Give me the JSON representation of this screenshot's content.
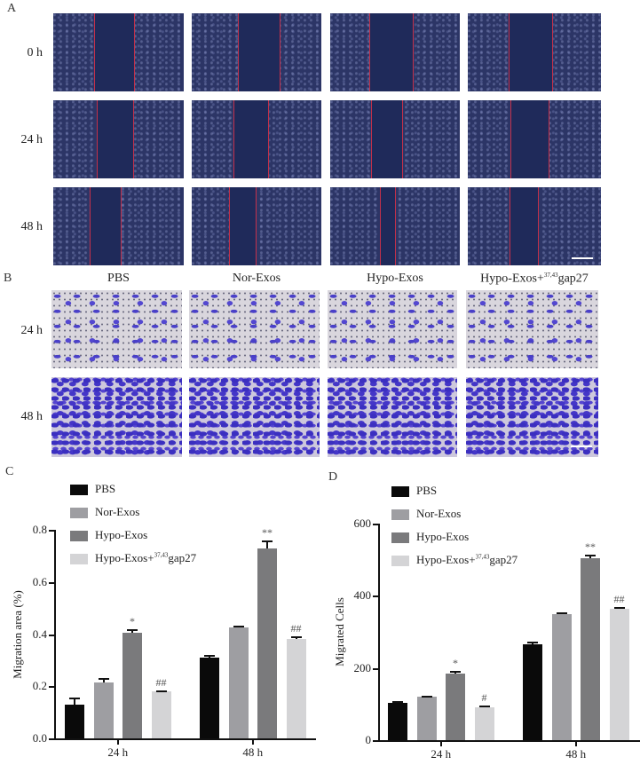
{
  "panels": {
    "A": {
      "letter": "A",
      "row_labels": [
        "0 h",
        "24 h",
        "48 h"
      ],
      "description": "Scratch wound healing micrographs, 4 groups x 3 time points"
    },
    "B": {
      "letter": "B",
      "column_headers": [
        "PBS",
        "Nor-Exos",
        "Hypo-Exos",
        "Hypo-Exos+",
        "37,43",
        "gap27"
      ],
      "row_labels": [
        "24 h",
        "48 h"
      ]
    },
    "C": {
      "letter": "C"
    },
    "D": {
      "letter": "D"
    }
  },
  "legend": {
    "items": [
      {
        "label": "PBS",
        "color": "#0a0a0a"
      },
      {
        "label": "Nor-Exos",
        "color": "#9e9ea2"
      },
      {
        "label": "Hypo-Exos",
        "color": "#7a7a7c"
      },
      {
        "label": "Hypo-Exos+",
        "sup": "37,43",
        "suffix": "gap27",
        "color": "#d4d4d6"
      }
    ]
  },
  "chart_data": [
    {
      "type": "bar",
      "panel": "C",
      "title": "",
      "xlabel": "",
      "ylabel": "Migration area (%)",
      "ylim": [
        0,
        0.8
      ],
      "yticks": [
        "0.0",
        "0.2",
        "0.4",
        "0.6",
        "0.8"
      ],
      "categories": [
        "24 h",
        "48 h"
      ],
      "series": [
        {
          "name": "PBS",
          "values": [
            0.13,
            0.31
          ],
          "errors": [
            0.025,
            0.01
          ]
        },
        {
          "name": "Nor-Exos",
          "values": [
            0.215,
            0.425
          ],
          "errors": [
            0.015,
            0.008
          ]
        },
        {
          "name": "Hypo-Exos",
          "values": [
            0.405,
            0.73
          ],
          "errors": [
            0.015,
            0.03
          ]
        },
        {
          "name": "Hypo-Exos+37,43gap27",
          "values": [
            0.18,
            0.38
          ],
          "errors": [
            0.005,
            0.01
          ]
        }
      ],
      "annotations": [
        {
          "category": "24 h",
          "series": "Hypo-Exos",
          "text": "*"
        },
        {
          "category": "24 h",
          "series": "Hypo-Exos+37,43gap27",
          "text": "##"
        },
        {
          "category": "48 h",
          "series": "Hypo-Exos",
          "text": "**"
        },
        {
          "category": "48 h",
          "series": "Hypo-Exos+37,43gap27",
          "text": "##"
        }
      ],
      "grid": false,
      "legend_position": "top-left"
    },
    {
      "type": "bar",
      "panel": "D",
      "title": "",
      "xlabel": "",
      "ylabel": "Migrated  Cells",
      "ylim": [
        0,
        600
      ],
      "yticks": [
        "0",
        "200",
        "400",
        "600"
      ],
      "categories": [
        "24 h",
        "48 h"
      ],
      "series": [
        {
          "name": "PBS",
          "values": [
            104,
            265
          ],
          "errors": [
            3,
            8
          ]
        },
        {
          "name": "Nor-Exos",
          "values": [
            120,
            350
          ],
          "errors": [
            3,
            5
          ]
        },
        {
          "name": "Hypo-Exos",
          "values": [
            185,
            505
          ],
          "errors": [
            8,
            10
          ]
        },
        {
          "name": "Hypo-Exos+37,43gap27",
          "values": [
            92,
            363
          ],
          "errors": [
            3,
            7
          ]
        }
      ],
      "annotations": [
        {
          "category": "24 h",
          "series": "Hypo-Exos",
          "text": "*"
        },
        {
          "category": "24 h",
          "series": "Hypo-Exos+37,43gap27",
          "text": "#"
        },
        {
          "category": "48 h",
          "series": "Hypo-Exos",
          "text": "**"
        },
        {
          "category": "48 h",
          "series": "Hypo-Exos+37,43gap27",
          "text": "##"
        }
      ],
      "grid": false,
      "legend_position": "top-left"
    }
  ]
}
